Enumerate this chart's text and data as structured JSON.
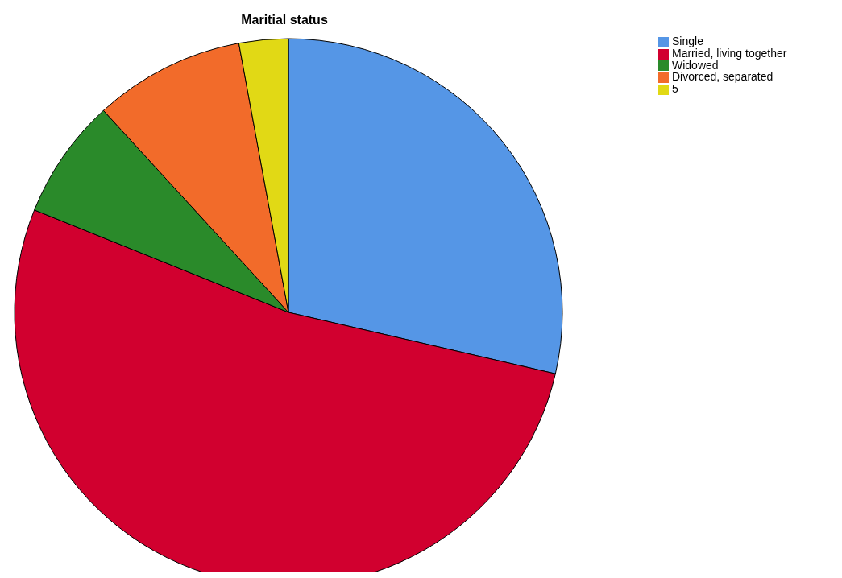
{
  "chart_data": {
    "type": "pie",
    "title": "Maritial status",
    "categories": [
      "Single",
      "Married, living together",
      "Widowed",
      "Divorced, separated",
      "5"
    ],
    "values": [
      28.6,
      52.5,
      7.1,
      8.9,
      2.9
    ],
    "colors": [
      "#5596e6",
      "#d1002f",
      "#2a8a2a",
      "#f26b2a",
      "#e1d915"
    ],
    "legend": "top right"
  }
}
